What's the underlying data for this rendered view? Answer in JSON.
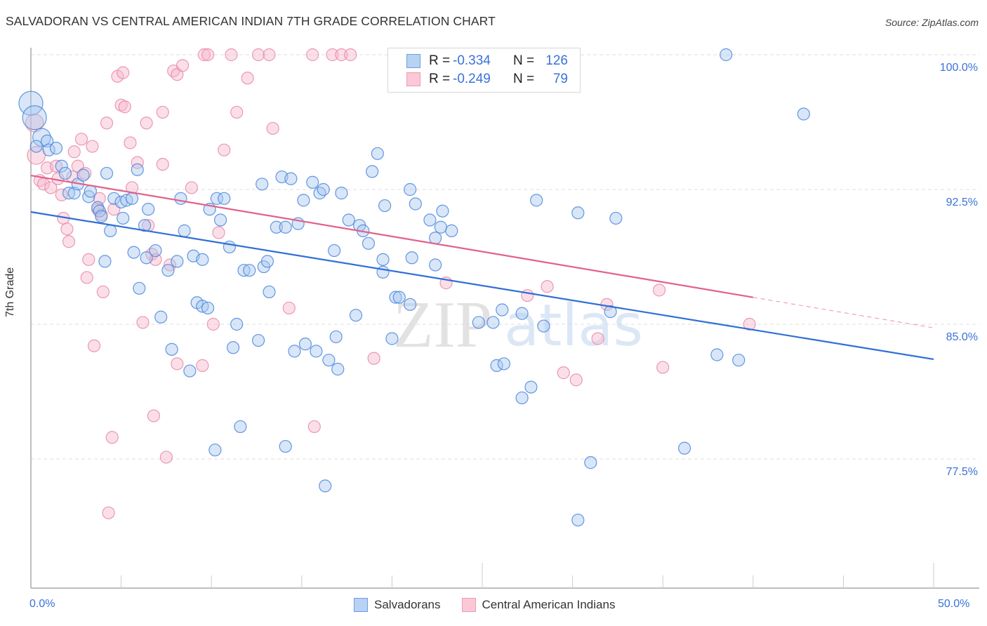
{
  "header": {
    "title": "SALVADORAN VS CENTRAL AMERICAN INDIAN 7TH GRADE CORRELATION CHART",
    "source": "Source: ZipAtlas.com"
  },
  "watermark": {
    "zip": "ZIP",
    "atlas": "atlas"
  },
  "legend_top": {
    "rows": [
      {
        "r_label": "R =",
        "r_value": "-0.334",
        "n_label": "N =",
        "n_value": "126"
      },
      {
        "r_label": "R =",
        "r_value": "-0.249",
        "n_label": "N =",
        "n_value": "79"
      }
    ]
  },
  "legend_bottom": {
    "items": [
      {
        "label": "Salvadorans"
      },
      {
        "label": "Central American Indians"
      }
    ]
  },
  "colors": {
    "blue_fill": "#a9c8f0",
    "blue_stroke": "#4a86dc",
    "blue_line": "#2f6fd6",
    "pink_fill": "#f7b8cb",
    "pink_stroke": "#e888a6",
    "pink_line": "#e2618a",
    "axis_text": "#3a72d8",
    "grid": "#dddddd"
  },
  "chart_data": {
    "type": "scatter",
    "title": "SALVADORAN VS CENTRAL AMERICAN INDIAN 7TH GRADE CORRELATION CHART",
    "xlabel": "",
    "ylabel": "7th Grade",
    "xlim": [
      0,
      50
    ],
    "ylim": [
      70.8,
      101.2
    ],
    "x_tick_labels": [
      {
        "value": 0,
        "label": "0.0%"
      },
      {
        "value": 50,
        "label": "50.0%"
      }
    ],
    "x_minor_ticks": [
      5,
      10,
      15,
      20,
      25,
      30,
      35,
      40,
      45,
      50
    ],
    "y_ticks": [
      {
        "value": 100,
        "label": "100.0%"
      },
      {
        "value": 92.5,
        "label": "92.5%"
      },
      {
        "value": 85,
        "label": "85.0%"
      },
      {
        "value": 77.5,
        "label": "77.5%"
      }
    ],
    "grid": "horizontal-dashed",
    "legend_placement": "top-center and bottom-center",
    "series": [
      {
        "name": "Salvadorans",
        "R": -0.334,
        "N": 126,
        "trend": {
          "x0": 0,
          "y0": 91.25,
          "x1": 50,
          "y1": 83.05,
          "dashed_from": null
        },
        "points": [
          [
            0.0,
            97.3,
            2
          ],
          [
            0.2,
            96.5,
            2
          ],
          [
            0.6,
            95.4,
            1.5
          ],
          [
            0.9,
            95.2
          ],
          [
            1.0,
            94.7
          ],
          [
            1.4,
            94.8
          ],
          [
            1.7,
            93.8
          ],
          [
            1.9,
            93.4
          ],
          [
            2.1,
            92.3
          ],
          [
            2.4,
            92.3
          ],
          [
            2.6,
            92.8
          ],
          [
            2.9,
            93.3
          ],
          [
            3.2,
            92.1
          ],
          [
            3.3,
            92.4
          ],
          [
            3.7,
            91.5
          ],
          [
            3.8,
            91.3
          ],
          [
            4.2,
            93.4
          ],
          [
            4.4,
            90.2
          ],
          [
            4.1,
            88.5
          ],
          [
            4.6,
            92.0
          ],
          [
            5.0,
            91.8
          ],
          [
            5.1,
            90.9
          ],
          [
            5.3,
            91.9
          ],
          [
            5.6,
            92.0
          ],
          [
            5.7,
            89.0
          ],
          [
            5.9,
            93.6
          ],
          [
            6.0,
            87.0
          ],
          [
            6.4,
            88.7
          ],
          [
            6.5,
            91.4
          ],
          [
            6.3,
            90.5
          ],
          [
            6.9,
            89.1
          ],
          [
            7.2,
            85.4
          ],
          [
            7.6,
            88.0
          ],
          [
            7.8,
            83.6
          ],
          [
            8.1,
            88.5
          ],
          [
            8.3,
            92.0
          ],
          [
            8.5,
            90.2
          ],
          [
            8.8,
            82.4
          ],
          [
            9.0,
            88.8
          ],
          [
            9.2,
            86.2
          ],
          [
            9.5,
            86.0
          ],
          [
            9.5,
            88.6
          ],
          [
            9.9,
            91.4
          ],
          [
            10.3,
            92.0
          ],
          [
            10.5,
            90.8
          ],
          [
            10.7,
            92.0
          ],
          [
            10.2,
            78.0
          ],
          [
            11.0,
            89.3
          ],
          [
            11.4,
            85.0
          ],
          [
            11.2,
            83.7
          ],
          [
            11.8,
            88.0
          ],
          [
            12.1,
            88.0
          ],
          [
            11.6,
            79.3
          ],
          [
            12.6,
            84.1
          ],
          [
            12.8,
            92.8
          ],
          [
            12.9,
            88.2
          ],
          [
            13.1,
            88.5
          ],
          [
            13.2,
            86.8
          ],
          [
            13.6,
            90.4
          ],
          [
            13.9,
            93.2
          ],
          [
            14.1,
            90.4
          ],
          [
            14.4,
            93.1
          ],
          [
            14.1,
            78.2
          ],
          [
            14.8,
            90.6
          ],
          [
            14.6,
            83.5
          ],
          [
            15.1,
            91.9
          ],
          [
            15.2,
            83.9
          ],
          [
            15.6,
            92.9
          ],
          [
            15.8,
            83.5
          ],
          [
            16.0,
            92.3
          ],
          [
            16.2,
            92.5
          ],
          [
            16.3,
            76.0
          ],
          [
            16.5,
            83.0
          ],
          [
            16.8,
            89.1
          ],
          [
            16.9,
            84.3
          ],
          [
            17.0,
            82.5
          ],
          [
            17.2,
            92.3
          ],
          [
            17.6,
            90.8
          ],
          [
            18.0,
            85.5
          ],
          [
            18.2,
            90.5
          ],
          [
            18.4,
            90.2
          ],
          [
            18.9,
            93.5
          ],
          [
            18.7,
            89.5
          ],
          [
            19.2,
            94.5
          ],
          [
            19.5,
            87.9
          ],
          [
            19.6,
            91.6
          ],
          [
            19.5,
            88.6
          ],
          [
            20.2,
            86.5
          ],
          [
            20.0,
            84.2
          ],
          [
            20.4,
            86.5
          ],
          [
            21.0,
            92.5
          ],
          [
            21.1,
            88.7
          ],
          [
            21.0,
            86.1
          ],
          [
            21.3,
            91.7
          ],
          [
            22.1,
            90.8
          ],
          [
            22.4,
            88.3
          ],
          [
            22.4,
            89.8
          ],
          [
            22.7,
            90.4
          ],
          [
            22.8,
            91.3
          ],
          [
            23.3,
            90.2
          ],
          [
            24.8,
            85.1
          ],
          [
            25.6,
            85.1
          ],
          [
            25.8,
            82.7
          ],
          [
            26.1,
            85.8
          ],
          [
            26.2,
            82.8
          ],
          [
            27.2,
            85.6
          ],
          [
            27.2,
            80.9
          ],
          [
            27.7,
            81.5
          ],
          [
            28.0,
            91.9
          ],
          [
            28.4,
            84.9
          ],
          [
            30.3,
            74.1
          ],
          [
            30.3,
            91.2
          ],
          [
            31.0,
            77.3
          ],
          [
            32.4,
            90.9
          ],
          [
            32.1,
            85.7
          ],
          [
            36.2,
            78.1
          ],
          [
            38.5,
            100.0
          ],
          [
            38.0,
            83.3
          ],
          [
            42.8,
            96.7
          ],
          [
            39.2,
            83.0
          ],
          [
            0.3,
            94.9
          ],
          [
            3.9,
            91.0
          ],
          [
            9.8,
            85.9
          ]
        ]
      },
      {
        "name": "Central American Indians",
        "R": -0.249,
        "N": 79,
        "trend": {
          "x0": 0,
          "y0": 93.28,
          "x1": 50,
          "y1": 84.8,
          "dashed_from": 40.0
        },
        "points": [
          [
            0.2,
            96.2,
            1.5
          ],
          [
            0.3,
            94.4,
            1.5
          ],
          [
            0.5,
            93.0
          ],
          [
            0.7,
            92.8
          ],
          [
            0.9,
            93.7
          ],
          [
            1.1,
            92.6
          ],
          [
            1.4,
            93.8
          ],
          [
            1.5,
            93.1
          ],
          [
            1.7,
            92.2
          ],
          [
            1.8,
            90.9
          ],
          [
            2.0,
            90.3
          ],
          [
            2.1,
            89.6
          ],
          [
            2.3,
            93.2
          ],
          [
            2.4,
            94.6
          ],
          [
            2.6,
            93.8
          ],
          [
            2.8,
            95.3
          ],
          [
            3.0,
            93.4
          ],
          [
            3.1,
            87.6
          ],
          [
            3.2,
            88.6
          ],
          [
            3.4,
            94.9
          ],
          [
            3.5,
            83.8
          ],
          [
            3.7,
            91.4
          ],
          [
            3.8,
            92.0
          ],
          [
            3.9,
            91.1
          ],
          [
            4.0,
            86.8
          ],
          [
            4.2,
            96.2
          ],
          [
            4.3,
            74.5
          ],
          [
            4.6,
            91.4
          ],
          [
            4.5,
            78.7
          ],
          [
            4.8,
            98.8
          ],
          [
            5.1,
            99.0
          ],
          [
            5.0,
            97.2
          ],
          [
            5.2,
            97.1
          ],
          [
            5.5,
            95.1
          ],
          [
            5.6,
            92.6
          ],
          [
            5.9,
            94.0
          ],
          [
            6.2,
            85.1
          ],
          [
            6.4,
            96.2
          ],
          [
            6.5,
            90.5
          ],
          [
            6.7,
            88.9
          ],
          [
            6.9,
            88.6
          ],
          [
            6.8,
            79.9
          ],
          [
            7.3,
            96.8
          ],
          [
            7.3,
            93.9
          ],
          [
            7.5,
            77.6
          ],
          [
            7.7,
            88.3
          ],
          [
            7.9,
            99.1
          ],
          [
            8.1,
            98.9
          ],
          [
            8.4,
            99.4
          ],
          [
            8.1,
            82.8
          ],
          [
            8.9,
            92.6
          ],
          [
            9.5,
            82.7
          ],
          [
            9.6,
            100.0
          ],
          [
            9.8,
            100.0
          ],
          [
            10.1,
            85.0
          ],
          [
            10.4,
            90.1
          ],
          [
            10.7,
            94.7
          ],
          [
            11.1,
            100.0
          ],
          [
            11.4,
            96.8
          ],
          [
            12.0,
            98.7
          ],
          [
            12.6,
            100.0
          ],
          [
            13.2,
            100.0
          ],
          [
            13.4,
            95.9
          ],
          [
            14.3,
            85.9
          ],
          [
            15.6,
            100.0
          ],
          [
            15.7,
            79.3
          ],
          [
            16.7,
            100.0
          ],
          [
            17.2,
            100.0
          ],
          [
            17.7,
            100.0
          ],
          [
            19.0,
            83.1
          ],
          [
            23.0,
            87.3
          ],
          [
            27.5,
            86.6
          ],
          [
            28.6,
            87.1
          ],
          [
            29.5,
            82.3
          ],
          [
            30.2,
            81.9
          ],
          [
            31.4,
            84.2
          ],
          [
            31.9,
            86.1
          ],
          [
            34.8,
            86.9
          ],
          [
            35.0,
            82.6
          ],
          [
            39.8,
            85.0
          ]
        ]
      }
    ]
  }
}
